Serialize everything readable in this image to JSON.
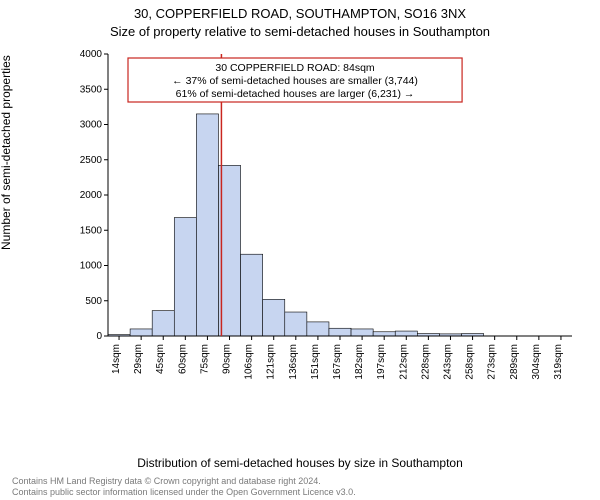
{
  "header": {
    "line1": "30, COPPERFIELD ROAD, SOUTHAMPTON, SO16 3NX",
    "line2": "Size of property relative to semi-detached houses in Southampton"
  },
  "axes": {
    "ylabel": "Number of semi-detached properties",
    "xlabel": "Distribution of semi-detached houses by size in Southampton",
    "y_ticks": [
      0,
      500,
      1000,
      1500,
      2000,
      2500,
      3000,
      3500,
      4000
    ],
    "ymax": 4000
  },
  "chart": {
    "type": "histogram",
    "bar_fill": "#c7d5f0",
    "bar_stroke": "#000000",
    "marker_color": "#c9261f",
    "marker_x_value": 84,
    "bin_start": 7,
    "bin_width": 15,
    "bins": [
      {
        "label": "14sqm",
        "value": 20
      },
      {
        "label": "29sqm",
        "value": 100
      },
      {
        "label": "45sqm",
        "value": 360
      },
      {
        "label": "60sqm",
        "value": 1680
      },
      {
        "label": "75sqm",
        "value": 3150
      },
      {
        "label": "90sqm",
        "value": 2420
      },
      {
        "label": "106sqm",
        "value": 1160
      },
      {
        "label": "121sqm",
        "value": 520
      },
      {
        "label": "136sqm",
        "value": 340
      },
      {
        "label": "151sqm",
        "value": 200
      },
      {
        "label": "167sqm",
        "value": 110
      },
      {
        "label": "182sqm",
        "value": 100
      },
      {
        "label": "197sqm",
        "value": 60
      },
      {
        "label": "212sqm",
        "value": 70
      },
      {
        "label": "228sqm",
        "value": 35
      },
      {
        "label": "243sqm",
        "value": 30
      },
      {
        "label": "258sqm",
        "value": 35
      },
      {
        "label": "273sqm",
        "value": 0
      },
      {
        "label": "289sqm",
        "value": 0
      },
      {
        "label": "304sqm",
        "value": 0
      },
      {
        "label": "319sqm",
        "value": 0
      }
    ]
  },
  "infobox": {
    "border_color": "#c9261f",
    "line1": "30 COPPERFIELD ROAD: 84sqm",
    "line2": "← 37% of semi-detached houses are smaller (3,744)",
    "line3": "61% of semi-detached houses are larger (6,231) →"
  },
  "credit": {
    "line1": "Contains HM Land Registry data © Crown copyright and database right 2024.",
    "line2": "Contains public sector information licensed under the Open Government Licence v3.0."
  }
}
